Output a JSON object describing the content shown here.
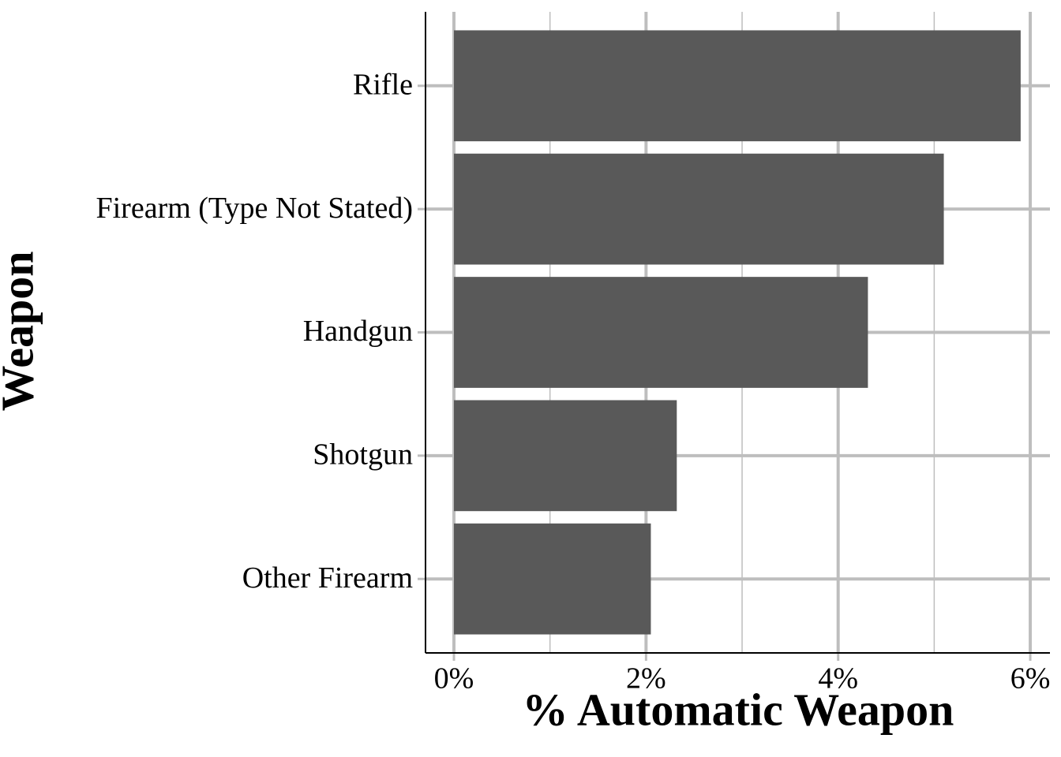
{
  "chart_data": {
    "type": "hbar",
    "xlabel": "% Automatic Weapon",
    "ylabel": "Weapon",
    "categories": [
      "Rifle",
      "Firearm (Type Not Stated)",
      "Handgun",
      "Shotgun",
      "Other Firearm"
    ],
    "values": [
      5.9,
      5.1,
      4.31,
      2.32,
      2.05
    ],
    "color": "#595959",
    "xlim": [
      -0.296,
      6.205
    ],
    "xticks": [
      {
        "value": 0,
        "label": "0%"
      },
      {
        "value": 2,
        "label": "2%"
      },
      {
        "value": 4,
        "label": "4%"
      },
      {
        "value": 6,
        "label": "6%"
      }
    ],
    "minor_xticks": [
      1,
      3,
      5
    ],
    "grid": true
  }
}
